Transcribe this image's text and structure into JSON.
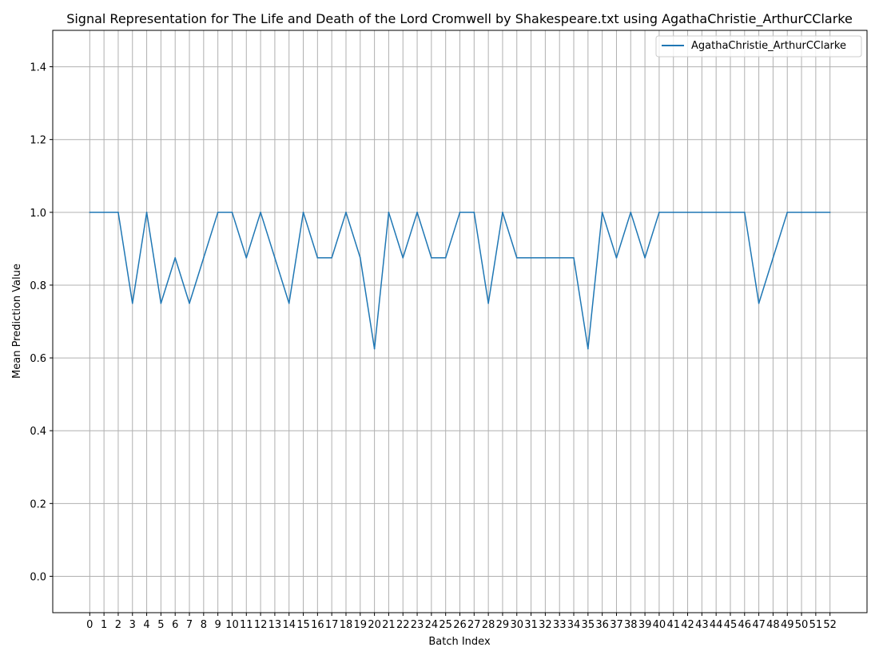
{
  "chart_data": {
    "type": "line",
    "title": "Signal Representation for The Life and Death of the Lord Cromwell by Shakespeare.txt using AgathaChristie_ArthurCClarke",
    "xlabel": "Batch Index",
    "ylabel": "Mean Prediction Value",
    "xlim": [
      -2.6,
      54.6
    ],
    "ylim": [
      -0.1,
      1.5
    ],
    "xticks": [
      0,
      1,
      2,
      3,
      4,
      5,
      6,
      7,
      8,
      9,
      10,
      11,
      12,
      13,
      14,
      15,
      16,
      17,
      18,
      19,
      20,
      21,
      22,
      23,
      24,
      25,
      26,
      27,
      28,
      29,
      30,
      31,
      32,
      33,
      34,
      35,
      36,
      37,
      38,
      39,
      40,
      41,
      42,
      43,
      44,
      45,
      46,
      47,
      48,
      49,
      50,
      51,
      52
    ],
    "yticks": [
      0.0,
      0.2,
      0.4,
      0.6,
      0.8,
      1.0,
      1.2,
      1.4
    ],
    "ytick_labels": [
      "0.0",
      "0.2",
      "0.4",
      "0.6",
      "0.8",
      "1.0",
      "1.2",
      "1.4"
    ],
    "grid": true,
    "legend_position": "top-right",
    "line_color": "#1f77b4",
    "series": [
      {
        "name": "AgathaChristie_ArthurCClarke",
        "color": "#1f77b4",
        "x": [
          0,
          1,
          2,
          3,
          4,
          5,
          6,
          7,
          8,
          9,
          10,
          11,
          12,
          13,
          14,
          15,
          16,
          17,
          18,
          19,
          20,
          21,
          22,
          23,
          24,
          25,
          26,
          27,
          28,
          29,
          30,
          31,
          32,
          33,
          34,
          35,
          36,
          37,
          38,
          39,
          40,
          41,
          42,
          43,
          44,
          45,
          46,
          47,
          48,
          49,
          50,
          51,
          52
        ],
        "values": [
          1.0,
          1.0,
          1.0,
          0.75,
          1.0,
          0.75,
          0.875,
          0.75,
          0.875,
          1.0,
          1.0,
          0.875,
          1.0,
          0.875,
          0.75,
          1.0,
          0.875,
          0.875,
          1.0,
          0.875,
          0.625,
          1.0,
          0.875,
          1.0,
          0.875,
          0.875,
          1.0,
          1.0,
          0.75,
          1.0,
          0.875,
          0.875,
          0.875,
          0.875,
          0.875,
          0.625,
          1.0,
          0.875,
          1.0,
          0.875,
          1.0,
          1.0,
          1.0,
          1.0,
          1.0,
          1.0,
          1.0,
          0.75,
          0.875,
          1.0,
          1.0,
          1.0,
          1.0
        ]
      }
    ]
  }
}
